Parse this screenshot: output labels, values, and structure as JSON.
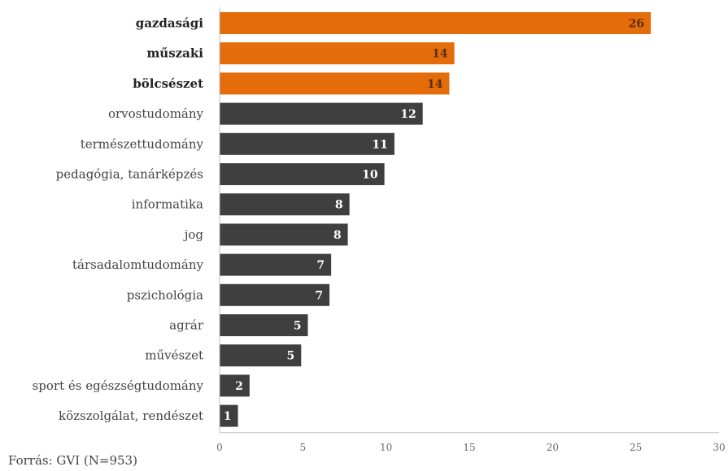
{
  "chart_data": {
    "type": "bar",
    "orientation": "horizontal",
    "categories": [
      "gazdasági",
      "műszaki",
      "bölcsészet",
      "orvostudomány",
      "természettudomány",
      "pedagógia, tanárképzés",
      "informatika",
      "jog",
      "társadalomtudomány",
      "pszichológia",
      "agrár",
      "művészet",
      "sport és egészségtudomány",
      "közszolgálat, rendészet"
    ],
    "values": [
      26,
      14,
      14,
      12,
      11,
      10,
      8,
      8,
      7,
      7,
      5,
      5,
      2,
      1
    ],
    "plotted_values": [
      25.9,
      14.1,
      13.8,
      12.2,
      10.5,
      9.9,
      7.8,
      7.7,
      6.7,
      6.6,
      5.3,
      4.9,
      1.8,
      1.1
    ],
    "highlighted": [
      true,
      true,
      true,
      false,
      false,
      false,
      false,
      false,
      false,
      false,
      false,
      false,
      false,
      false
    ],
    "xlim": [
      0,
      30
    ],
    "xticks": [
      0,
      5,
      10,
      15,
      20,
      25,
      30
    ],
    "grid": false,
    "title": "",
    "xlabel": "",
    "ylabel": ""
  },
  "colors": {
    "highlight": "#e46c0a",
    "default": "#3f3f3f",
    "highlight_label": "#5a2e08",
    "default_label": "#ffffff"
  },
  "source": "Forrás: GVI (N=953)"
}
